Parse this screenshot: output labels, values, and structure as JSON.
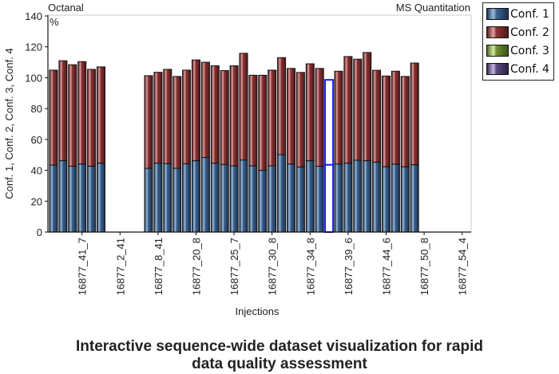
{
  "chart_data": {
    "type": "bar",
    "stacked": true,
    "title_left": "Octanal",
    "title_right": "MS Quantitation",
    "unit_label": "%",
    "xlabel": "Injections",
    "ylabel": "Conf. 1, Conf. 2, Conf. 3, Conf. 4",
    "ylim": [
      0,
      140
    ],
    "yticks": [
      0,
      20,
      40,
      60,
      80,
      100,
      120,
      140
    ],
    "slot_count": 44,
    "x_tick_labels": [
      {
        "slot": 4,
        "label": "16877_41_7"
      },
      {
        "slot": 8,
        "label": "16877_2_41"
      },
      {
        "slot": 12,
        "label": "16877_8_41"
      },
      {
        "slot": 16,
        "label": "16877_20_8"
      },
      {
        "slot": 20,
        "label": "16877_25_7"
      },
      {
        "slot": 24,
        "label": "16877_30_8"
      },
      {
        "slot": 28,
        "label": "16877_34_8"
      },
      {
        "slot": 32,
        "label": "16877_39_6"
      },
      {
        "slot": 36,
        "label": "16877_44_6"
      },
      {
        "slot": 40,
        "label": "16877_50_8"
      },
      {
        "slot": 44,
        "label": "16877_54_4"
      }
    ],
    "selected_slot": 30,
    "series": [
      {
        "name": "Conf. 1",
        "color": "#2f5179",
        "values": [
          43.4,
          46.2,
          42.7,
          44.1,
          42.7,
          44.6,
          null,
          null,
          null,
          null,
          41.3,
          44.6,
          44.3,
          41.3,
          44.3,
          46.2,
          48.3,
          44.6,
          43.8,
          42.9,
          46.7,
          42.9,
          40.0,
          42.9,
          50.1,
          44.1,
          42.1,
          46.2,
          42.6,
          43.6,
          44.1,
          44.6,
          46.5,
          46.2,
          45.3,
          42.3,
          44.0,
          42.3,
          43.6,
          null,
          null,
          null,
          null,
          null
        ]
      },
      {
        "name": "Conf. 2",
        "color": "#7a2a2a",
        "values": [
          61.5,
          64.8,
          65.7,
          66.3,
          62.7,
          62.4,
          null,
          null,
          null,
          null,
          60.0,
          58.9,
          61.1,
          59.5,
          60.6,
          65.3,
          61.7,
          63.1,
          60.8,
          64.8,
          69.1,
          58.7,
          61.6,
          62.0,
          62.9,
          61.9,
          61.3,
          62.8,
          63.4,
          55.0,
          60.1,
          69.1,
          65.5,
          70.1,
          59.5,
          58.8,
          60.2,
          58.5,
          65.9,
          null,
          null,
          null,
          null,
          null
        ]
      },
      {
        "name": "Conf. 3",
        "color": "#5b7a2a",
        "values": []
      },
      {
        "name": "Conf. 4",
        "color": "#4a3a66",
        "values": []
      }
    ]
  },
  "caption": {
    "line1": "Interactive sequence-wide dataset visualization for rapid",
    "line2": "data quality assessment"
  }
}
